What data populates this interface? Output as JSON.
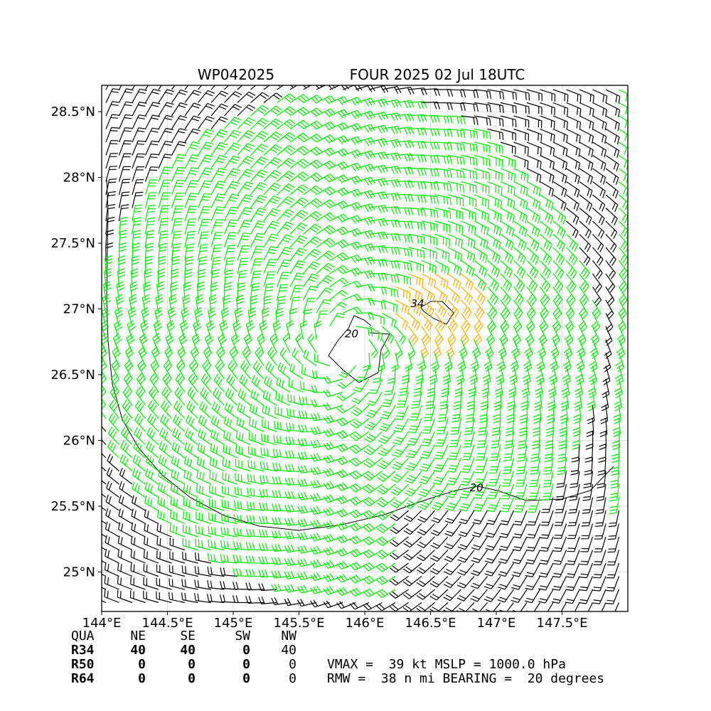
{
  "chart_data": {
    "type": "wind_barb_map",
    "title_left": "WP042025",
    "title_right": "FOUR 2025 02 Jul 18UTC",
    "x_ticks": [
      "144°E",
      "144.5°E",
      "145°E",
      "145.5°E",
      "146°E",
      "146.5°E",
      "147°E",
      "147.5°E"
    ],
    "x_tick_values": [
      144.0,
      144.5,
      145.0,
      145.5,
      146.0,
      146.5,
      147.0,
      147.5
    ],
    "y_ticks": [
      "28.5°N",
      "28°N",
      "27.5°N",
      "27°N",
      "26.5°N",
      "26°N",
      "25.5°N",
      "25°N"
    ],
    "y_tick_values": [
      28.5,
      28.0,
      27.5,
      27.0,
      26.5,
      26.0,
      25.5,
      25.0
    ],
    "xlim": [
      144.0,
      148.0
    ],
    "ylim": [
      24.7,
      28.7
    ],
    "grid": true,
    "storm_center": {
      "lon": 145.85,
      "lat": 26.72
    },
    "rmw_center": {
      "lon": 146.5,
      "lat": 27.05
    },
    "wind_speed_bands": [
      {
        "range_kt": "below 34",
        "color": "#000000"
      },
      {
        "range_kt": "34 to 50",
        "color": "#00ee00"
      },
      {
        "range_kt": "rmw core",
        "color": "#ffb000"
      }
    ],
    "contour_labels": [
      {
        "text": "20",
        "lon": 145.9,
        "lat": 26.81
      },
      {
        "text": "34",
        "lon": 146.4,
        "lat": 27.04
      },
      {
        "text": "20",
        "lon": 146.85,
        "lat": 25.64
      }
    ],
    "table": {
      "header": [
        "QUA",
        "NE",
        "SE",
        "SW",
        "NW"
      ],
      "rows": [
        {
          "label": "R34",
          "values": [
            "40",
            "40",
            "0",
            "40"
          ]
        },
        {
          "label": "R50",
          "values": [
            "0",
            "0",
            "0",
            "0"
          ]
        },
        {
          "label": "R64",
          "values": [
            "0",
            "0",
            "0",
            "0"
          ]
        }
      ]
    },
    "vmax_line": "VMAX =  39 kt MSLP = 1000.0 hPa",
    "rmw_line": "RMW =  38 n mi BEARING =  20 degrees"
  }
}
